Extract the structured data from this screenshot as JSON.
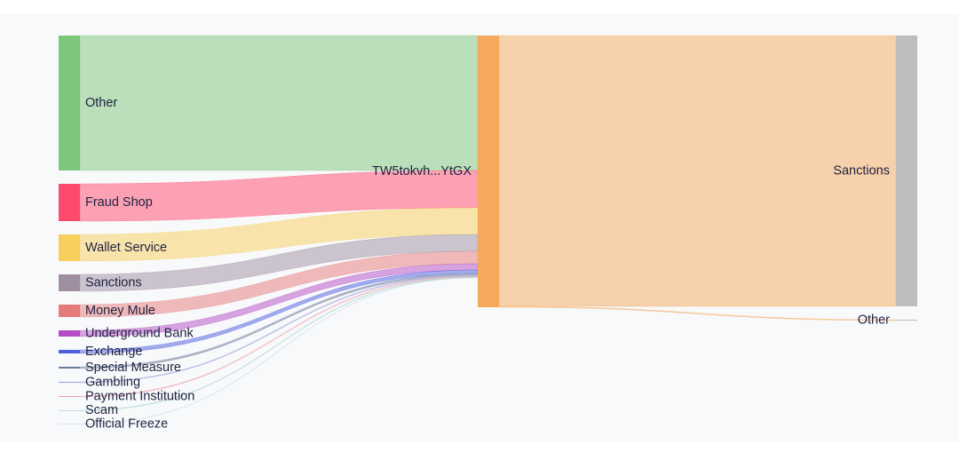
{
  "chart_data": {
    "type": "sankey",
    "nodes": [
      {
        "name": "Other",
        "color": "#7dc67a"
      },
      {
        "name": "Fraud Shop",
        "color": "#ff4a6e"
      },
      {
        "name": "Wallet Service",
        "color": "#f7cf5c"
      },
      {
        "name": "Sanctions",
        "color": "#9e8ea0"
      },
      {
        "name": "Money Mule",
        "color": "#e57a7a"
      },
      {
        "name": "Underground Bank",
        "color": "#b44cc5"
      },
      {
        "name": "Exchange",
        "color": "#4b5ee0"
      },
      {
        "name": "Special Measure",
        "color": "#6a7a9a"
      },
      {
        "name": "Gambling",
        "color": "#9a9ad8"
      },
      {
        "name": "Payment Institution",
        "color": "#f0a0b0"
      },
      {
        "name": "Scam",
        "color": "#8fd0c0"
      },
      {
        "name": "Official Freeze",
        "color": "#c0d0e0"
      },
      {
        "name": "TW5tokvh...YtGX",
        "color": "#f5a95b"
      },
      {
        "name": "Sanctions",
        "color": "#bdbdbd"
      },
      {
        "name": "Other",
        "color": "#bdbdbd"
      }
    ],
    "links": [
      {
        "source": 0,
        "target": 12,
        "value": 152
      },
      {
        "source": 1,
        "target": 12,
        "value": 42
      },
      {
        "source": 2,
        "target": 12,
        "value": 30
      },
      {
        "source": 3,
        "target": 12,
        "value": 19
      },
      {
        "source": 4,
        "target": 12,
        "value": 14
      },
      {
        "source": 5,
        "target": 12,
        "value": 7
      },
      {
        "source": 6,
        "target": 12,
        "value": 4
      },
      {
        "source": 7,
        "target": 12,
        "value": 2
      },
      {
        "source": 8,
        "target": 12,
        "value": 1
      },
      {
        "source": 9,
        "target": 12,
        "value": 1
      },
      {
        "source": 10,
        "target": 12,
        "value": 0.5
      },
      {
        "source": 11,
        "target": 12,
        "value": 0.3
      },
      {
        "source": 12,
        "target": 13,
        "value": 305
      },
      {
        "source": 12,
        "target": 14,
        "value": 1
      }
    ]
  }
}
